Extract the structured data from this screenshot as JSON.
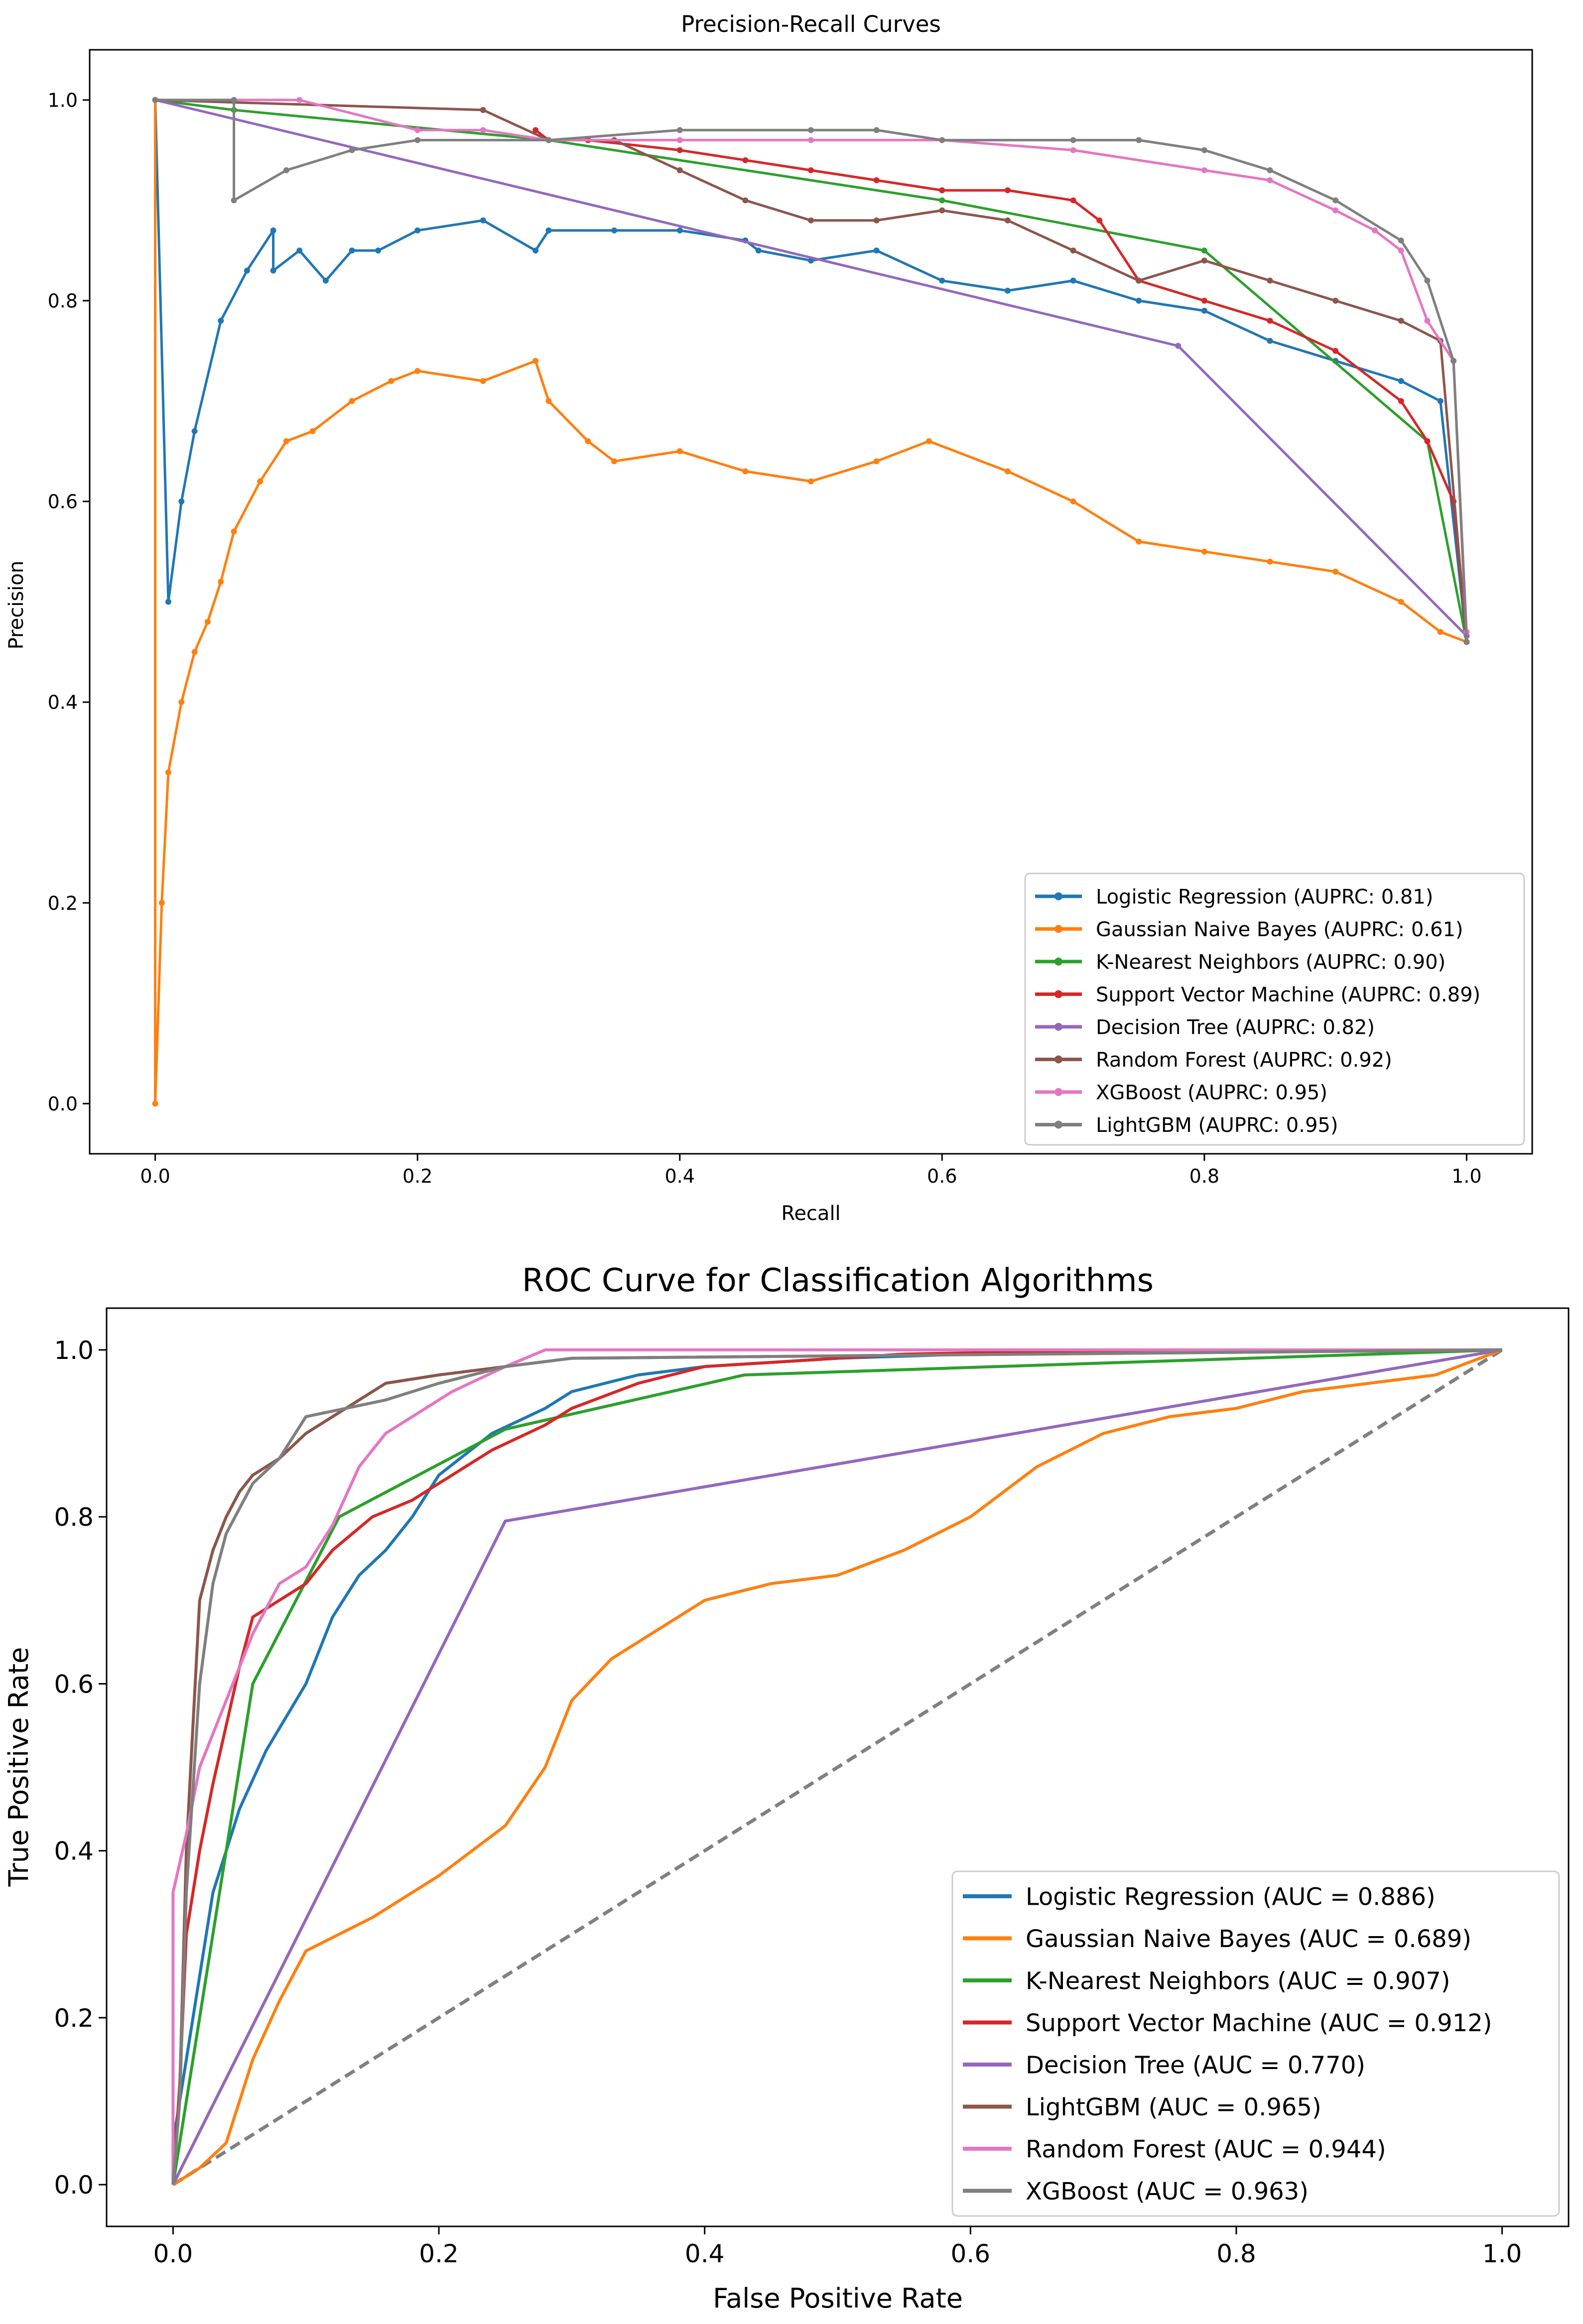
{
  "chart_data": [
    {
      "type": "line",
      "title": "Precision-Recall Curves",
      "xlabel": "Recall",
      "ylabel": "Precision",
      "xlim": [
        -0.05,
        1.05
      ],
      "ylim": [
        -0.05,
        1.05
      ],
      "xticks": [
        0.0,
        0.2,
        0.4,
        0.6,
        0.8,
        1.0
      ],
      "yticks": [
        0.0,
        0.2,
        0.4,
        0.6,
        0.8,
        1.0
      ],
      "grid": false,
      "legend_position": "bottom-right",
      "series": [
        {
          "name": "Logistic Regression (AUPRC: 0.81)",
          "color": "#1f77b4",
          "marker": "dot",
          "x": [
            0.0,
            0.01,
            0.02,
            0.03,
            0.05,
            0.07,
            0.09,
            0.09,
            0.11,
            0.13,
            0.15,
            0.17,
            0.2,
            0.25,
            0.29,
            0.3,
            0.35,
            0.4,
            0.45,
            0.46,
            0.5,
            0.55,
            0.6,
            0.65,
            0.7,
            0.75,
            0.8,
            0.85,
            0.9,
            0.95,
            0.98,
            1.0
          ],
          "y": [
            1.0,
            0.5,
            0.6,
            0.67,
            0.78,
            0.83,
            0.87,
            0.83,
            0.85,
            0.82,
            0.85,
            0.85,
            0.87,
            0.88,
            0.85,
            0.87,
            0.87,
            0.87,
            0.86,
            0.85,
            0.84,
            0.85,
            0.82,
            0.81,
            0.82,
            0.8,
            0.79,
            0.76,
            0.74,
            0.72,
            0.7,
            0.46
          ]
        },
        {
          "name": "Gaussian Naive Bayes (AUPRC: 0.61)",
          "color": "#ff7f0e",
          "marker": "dot",
          "x": [
            0.0,
            0.0,
            0.005,
            0.01,
            0.02,
            0.03,
            0.04,
            0.05,
            0.06,
            0.08,
            0.1,
            0.12,
            0.15,
            0.18,
            0.2,
            0.25,
            0.29,
            0.3,
            0.33,
            0.35,
            0.4,
            0.45,
            0.5,
            0.55,
            0.59,
            0.65,
            0.7,
            0.75,
            0.8,
            0.85,
            0.9,
            0.95,
            0.98,
            1.0
          ],
          "y": [
            1.0,
            0.0,
            0.2,
            0.33,
            0.4,
            0.45,
            0.48,
            0.52,
            0.57,
            0.62,
            0.66,
            0.67,
            0.7,
            0.72,
            0.73,
            0.72,
            0.74,
            0.7,
            0.66,
            0.64,
            0.65,
            0.63,
            0.62,
            0.64,
            0.66,
            0.63,
            0.6,
            0.56,
            0.55,
            0.54,
            0.53,
            0.5,
            0.47,
            0.46
          ]
        },
        {
          "name": "K-Nearest Neighbors (AUPRC: 0.90)",
          "color": "#2ca02c",
          "marker": "dot",
          "x": [
            0.0,
            0.06,
            0.3,
            0.6,
            0.8,
            0.97,
            1.0
          ],
          "y": [
            1.0,
            0.99,
            0.96,
            0.9,
            0.85,
            0.66,
            0.46
          ]
        },
        {
          "name": "Support Vector Machine (AUPRC: 0.89)",
          "color": "#d62728",
          "marker": "dot",
          "x": [
            0.29,
            0.3,
            0.33,
            0.4,
            0.45,
            0.5,
            0.55,
            0.6,
            0.65,
            0.7,
            0.72,
            0.75,
            0.8,
            0.85,
            0.9,
            0.95,
            0.97,
            0.99,
            1.0
          ],
          "y": [
            0.97,
            0.96,
            0.96,
            0.95,
            0.94,
            0.93,
            0.92,
            0.91,
            0.91,
            0.9,
            0.88,
            0.82,
            0.8,
            0.78,
            0.75,
            0.7,
            0.66,
            0.6,
            0.46
          ]
        },
        {
          "name": "Decision Tree (AUPRC: 0.82)",
          "color": "#9467bd",
          "marker": "dot",
          "x": [
            0.0,
            0.78,
            1.0
          ],
          "y": [
            1.0,
            0.755,
            0.466
          ]
        },
        {
          "name": "Random Forest (AUPRC: 0.92)",
          "color": "#8c564b",
          "marker": "dot",
          "x": [
            0.0,
            0.25,
            0.3,
            0.35,
            0.4,
            0.45,
            0.5,
            0.55,
            0.6,
            0.65,
            0.7,
            0.75,
            0.8,
            0.85,
            0.9,
            0.95,
            0.98,
            1.0
          ],
          "y": [
            1.0,
            0.99,
            0.96,
            0.96,
            0.93,
            0.9,
            0.88,
            0.88,
            0.89,
            0.88,
            0.85,
            0.82,
            0.84,
            0.82,
            0.8,
            0.78,
            0.76,
            0.46
          ]
        },
        {
          "name": "XGBoost (AUPRC: 0.95)",
          "color": "#e377c2",
          "marker": "dot",
          "x": [
            0.0,
            0.11,
            0.2,
            0.25,
            0.3,
            0.4,
            0.5,
            0.6,
            0.7,
            0.8,
            0.85,
            0.9,
            0.93,
            0.95,
            0.97,
            0.99,
            1.0
          ],
          "y": [
            1.0,
            1.0,
            0.97,
            0.97,
            0.96,
            0.96,
            0.96,
            0.96,
            0.95,
            0.93,
            0.92,
            0.89,
            0.87,
            0.85,
            0.78,
            0.74,
            0.47
          ]
        },
        {
          "name": "LightGBM (AUPRC: 0.95)",
          "color": "#7f7f7f",
          "marker": "dot",
          "x": [
            0.0,
            0.06,
            0.06,
            0.1,
            0.15,
            0.2,
            0.3,
            0.4,
            0.5,
            0.55,
            0.6,
            0.7,
            0.75,
            0.8,
            0.85,
            0.9,
            0.95,
            0.97,
            0.99,
            1.0
          ],
          "y": [
            1.0,
            1.0,
            0.9,
            0.93,
            0.95,
            0.96,
            0.96,
            0.97,
            0.97,
            0.97,
            0.96,
            0.96,
            0.96,
            0.95,
            0.93,
            0.9,
            0.86,
            0.82,
            0.74,
            0.46
          ]
        }
      ]
    },
    {
      "type": "line",
      "title": "ROC Curve for Classification Algorithms",
      "xlabel": "False Positive Rate",
      "ylabel": "True Positive Rate",
      "xlim": [
        -0.05,
        1.05
      ],
      "ylim": [
        -0.05,
        1.05
      ],
      "xticks": [
        0.0,
        0.2,
        0.4,
        0.6,
        0.8,
        1.0
      ],
      "yticks": [
        0.0,
        0.2,
        0.4,
        0.6,
        0.8,
        1.0
      ],
      "grid": false,
      "legend_position": "bottom-right",
      "reference_line": {
        "x": [
          0.0,
          1.0
        ],
        "y": [
          0.0,
          1.0
        ],
        "color": "#808080",
        "style": "dashed"
      },
      "series": [
        {
          "name": "Logistic Regression (AUC = 0.886)",
          "color": "#1f77b4",
          "x": [
            0.0,
            0.0,
            0.01,
            0.02,
            0.03,
            0.05,
            0.07,
            0.1,
            0.12,
            0.14,
            0.16,
            0.18,
            0.2,
            0.24,
            0.28,
            0.3,
            0.35,
            0.4,
            0.5,
            0.6,
            0.76,
            1.0
          ],
          "y": [
            0.0,
            0.05,
            0.15,
            0.25,
            0.35,
            0.45,
            0.52,
            0.6,
            0.68,
            0.73,
            0.76,
            0.8,
            0.85,
            0.9,
            0.93,
            0.95,
            0.97,
            0.98,
            0.99,
            0.995,
            0.998,
            1.0
          ]
        },
        {
          "name": "Gaussian Naive Bayes (AUC = 0.689)",
          "color": "#ff7f0e",
          "x": [
            0.0,
            0.02,
            0.04,
            0.06,
            0.08,
            0.1,
            0.15,
            0.2,
            0.25,
            0.28,
            0.3,
            0.33,
            0.35,
            0.38,
            0.4,
            0.45,
            0.5,
            0.55,
            0.6,
            0.65,
            0.7,
            0.75,
            0.8,
            0.85,
            0.9,
            0.95,
            1.0
          ],
          "y": [
            0.0,
            0.02,
            0.05,
            0.15,
            0.22,
            0.28,
            0.32,
            0.37,
            0.43,
            0.5,
            0.58,
            0.63,
            0.65,
            0.68,
            0.7,
            0.72,
            0.73,
            0.76,
            0.8,
            0.86,
            0.9,
            0.92,
            0.93,
            0.95,
            0.96,
            0.97,
            1.0
          ]
        },
        {
          "name": "K-Nearest Neighbors (AUC = 0.907)",
          "color": "#2ca02c",
          "x": [
            0.0,
            0.06,
            0.125,
            0.25,
            0.43,
            1.0
          ],
          "y": [
            0.0,
            0.6,
            0.8,
            0.905,
            0.97,
            1.0
          ]
        },
        {
          "name": "Support Vector Machine (AUC = 0.912)",
          "color": "#d62728",
          "x": [
            0.0,
            0.005,
            0.01,
            0.02,
            0.03,
            0.04,
            0.05,
            0.06,
            0.08,
            0.1,
            0.12,
            0.15,
            0.18,
            0.2,
            0.24,
            0.28,
            0.3,
            0.35,
            0.4,
            0.5,
            0.55,
            0.65,
            1.0
          ],
          "y": [
            0.0,
            0.12,
            0.3,
            0.4,
            0.48,
            0.55,
            0.62,
            0.68,
            0.7,
            0.72,
            0.76,
            0.8,
            0.82,
            0.84,
            0.88,
            0.91,
            0.93,
            0.96,
            0.98,
            0.99,
            0.995,
            0.998,
            1.0
          ]
        },
        {
          "name": "Decision Tree (AUC = 0.770)",
          "color": "#9467bd",
          "x": [
            0.0,
            0.25,
            1.0
          ],
          "y": [
            0.0,
            0.795,
            1.0
          ]
        },
        {
          "name": "LightGBM (AUC = 0.965)",
          "color": "#8c564b",
          "x": [
            0.0,
            0.005,
            0.01,
            0.015,
            0.02,
            0.03,
            0.04,
            0.05,
            0.06,
            0.08,
            0.1,
            0.13,
            0.16,
            0.2,
            0.25,
            0.3,
            1.0
          ],
          "y": [
            0.0,
            0.11,
            0.4,
            0.55,
            0.7,
            0.76,
            0.8,
            0.83,
            0.85,
            0.87,
            0.9,
            0.93,
            0.96,
            0.97,
            0.98,
            0.99,
            1.0
          ]
        },
        {
          "name": "Random Forest (AUC = 0.944)",
          "color": "#e377c2",
          "x": [
            0.0,
            0.0,
            0.01,
            0.02,
            0.04,
            0.06,
            0.08,
            0.1,
            0.12,
            0.14,
            0.16,
            0.18,
            0.21,
            0.25,
            0.28,
            0.3,
            1.0
          ],
          "y": [
            0.0,
            0.35,
            0.42,
            0.5,
            0.58,
            0.66,
            0.72,
            0.74,
            0.79,
            0.86,
            0.9,
            0.92,
            0.95,
            0.98,
            1.0,
            1.0,
            1.0
          ]
        },
        {
          "name": "XGBoost (AUC = 0.963)",
          "color": "#7f7f7f",
          "x": [
            0.0,
            0.005,
            0.01,
            0.02,
            0.03,
            0.04,
            0.05,
            0.06,
            0.08,
            0.1,
            0.13,
            0.16,
            0.2,
            0.25,
            0.3,
            1.0
          ],
          "y": [
            0.0,
            0.1,
            0.35,
            0.6,
            0.72,
            0.78,
            0.81,
            0.84,
            0.87,
            0.92,
            0.93,
            0.94,
            0.96,
            0.98,
            0.99,
            1.0
          ]
        }
      ]
    }
  ]
}
